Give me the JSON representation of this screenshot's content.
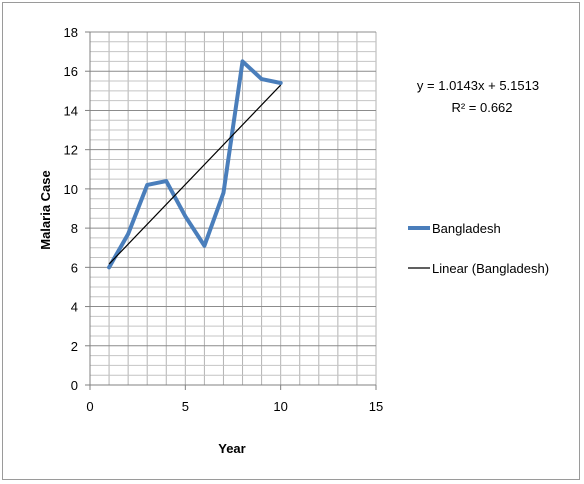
{
  "chart_data": {
    "type": "line",
    "title": "",
    "xlabel": "Year",
    "ylabel": "Malaria Case",
    "xlim": [
      0,
      15
    ],
    "ylim": [
      0,
      18
    ],
    "x_ticks": [
      "0",
      "5",
      "10",
      "15"
    ],
    "y_ticks": [
      "0",
      "2",
      "4",
      "6",
      "8",
      "10",
      "12",
      "14",
      "16",
      "18"
    ],
    "grid": true,
    "legend_position": "right",
    "series": [
      {
        "name": "Bangladesh",
        "color": "#4a7ebb",
        "x": [
          1,
          2,
          3,
          4,
          5,
          6,
          7,
          8,
          9,
          10
        ],
        "y": [
          6.0,
          7.7,
          10.2,
          10.4,
          8.6,
          7.1,
          9.8,
          16.5,
          15.6,
          15.4
        ]
      },
      {
        "name": "Linear (Bangladesh)",
        "color": "#000000",
        "x": [
          1,
          10
        ],
        "y": [
          6.1656,
          15.2943
        ]
      }
    ],
    "trendline": {
      "equation": "y = 1.0143x + 5.1513",
      "r_squared": "R² = 0.662",
      "slope": 1.0143,
      "intercept": 5.1513
    }
  }
}
